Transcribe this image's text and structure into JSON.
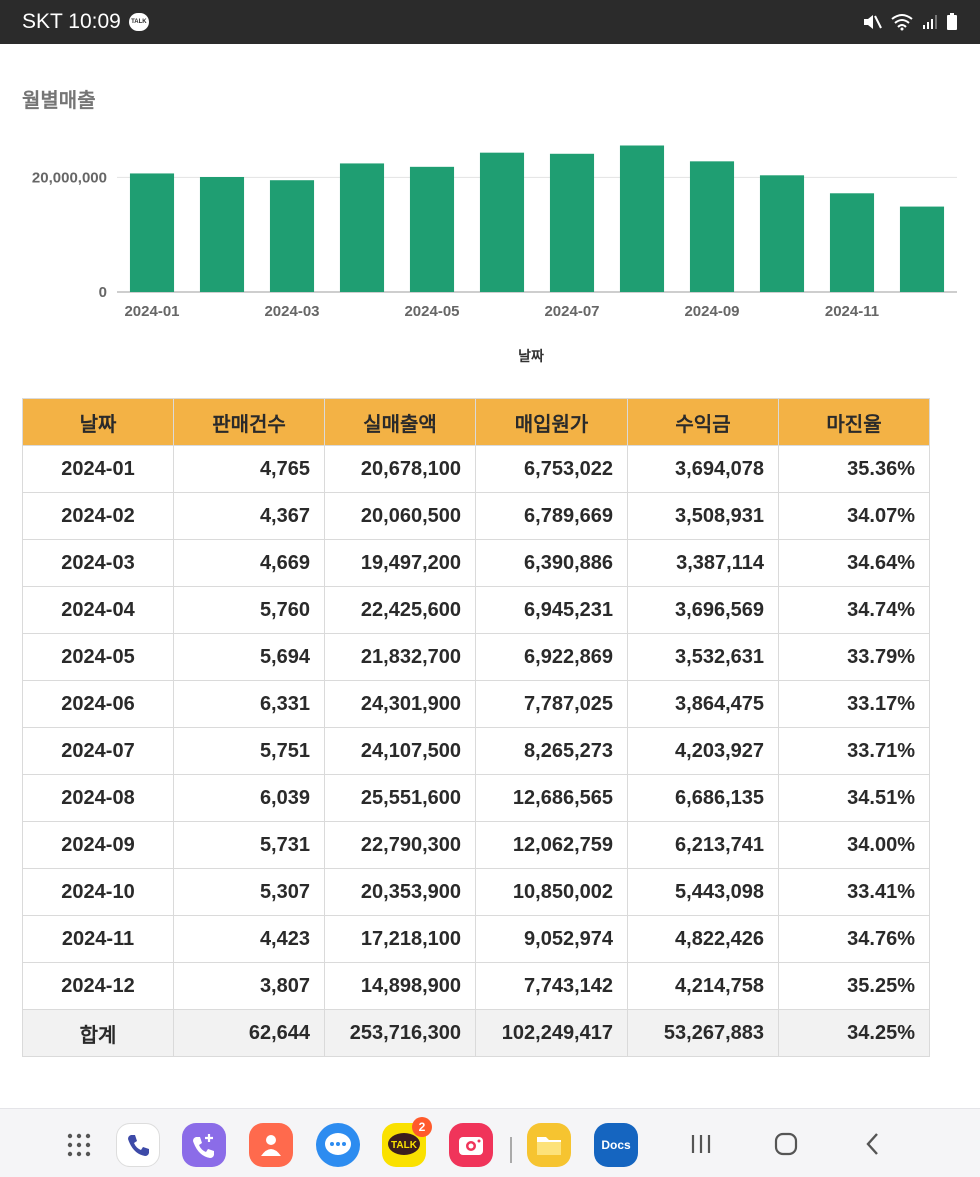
{
  "status_bar": {
    "carrier_time": "SKT 10:09",
    "talk_badge": "TALK"
  },
  "chart": {
    "title": "월별매출"
  },
  "chart_data": {
    "type": "bar",
    "title": "월별매출",
    "xlabel": "날짜",
    "ylabel": "",
    "categories": [
      "2024-01",
      "2024-02",
      "2024-03",
      "2024-04",
      "2024-05",
      "2024-06",
      "2024-07",
      "2024-08",
      "2024-09",
      "2024-10",
      "2024-11",
      "2024-12"
    ],
    "values": [
      20678100,
      20060500,
      19497200,
      22425600,
      21832700,
      24301900,
      24107500,
      25551600,
      22790300,
      20353900,
      17218100,
      14898900
    ],
    "x_tick_labels": [
      "2024-01",
      "2024-03",
      "2024-05",
      "2024-07",
      "2024-09",
      "2024-11"
    ],
    "y_ticks": [
      0,
      20000000
    ],
    "y_tick_labels": [
      "0",
      "20,000,000"
    ],
    "ylim": [
      0,
      30000000
    ],
    "grid": true,
    "bar_color": "#1f9e72"
  },
  "table": {
    "headers": [
      "날짜",
      "판매건수",
      "실매출액",
      "매입원가",
      "수익금",
      "마진율"
    ],
    "rows": [
      [
        "2024-01",
        "4,765",
        "20,678,100",
        "6,753,022",
        "3,694,078",
        "35.36%"
      ],
      [
        "2024-02",
        "4,367",
        "20,060,500",
        "6,789,669",
        "3,508,931",
        "34.07%"
      ],
      [
        "2024-03",
        "4,669",
        "19,497,200",
        "6,390,886",
        "3,387,114",
        "34.64%"
      ],
      [
        "2024-04",
        "5,760",
        "22,425,600",
        "6,945,231",
        "3,696,569",
        "34.74%"
      ],
      [
        "2024-05",
        "5,694",
        "21,832,700",
        "6,922,869",
        "3,532,631",
        "33.79%"
      ],
      [
        "2024-06",
        "6,331",
        "24,301,900",
        "7,787,025",
        "3,864,475",
        "33.17%"
      ],
      [
        "2024-07",
        "5,751",
        "24,107,500",
        "8,265,273",
        "4,203,927",
        "33.71%"
      ],
      [
        "2024-08",
        "6,039",
        "25,551,600",
        "12,686,565",
        "6,686,135",
        "34.51%"
      ],
      [
        "2024-09",
        "5,731",
        "22,790,300",
        "12,062,759",
        "6,213,741",
        "34.00%"
      ],
      [
        "2024-10",
        "5,307",
        "20,353,900",
        "10,850,002",
        "5,443,098",
        "33.41%"
      ],
      [
        "2024-11",
        "4,423",
        "17,218,100",
        "9,052,974",
        "4,822,426",
        "34.76%"
      ],
      [
        "2024-12",
        "3,807",
        "14,898,900",
        "7,743,142",
        "4,214,758",
        "35.25%"
      ]
    ],
    "total": [
      "합계",
      "62,644",
      "253,716,300",
      "102,249,417",
      "53,267,883",
      "34.25%"
    ],
    "header_color": "#f3b245"
  },
  "nav_bar": {
    "talk_badge_count": "2",
    "talk_label": "TALK",
    "docs_label": "Docs"
  }
}
